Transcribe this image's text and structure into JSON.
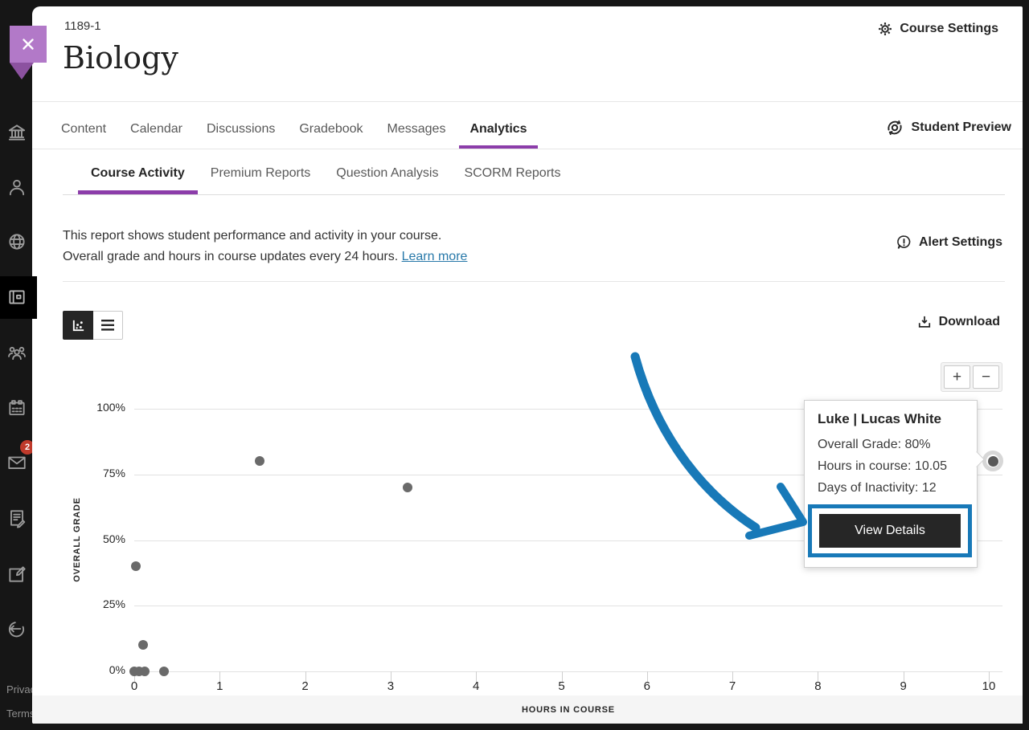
{
  "header": {
    "course_id": "1189-1",
    "course_title": "Biology",
    "course_settings_label": "Course Settings"
  },
  "nav": {
    "tabs": [
      "Content",
      "Calendar",
      "Discussions",
      "Gradebook",
      "Messages",
      "Analytics"
    ],
    "active_tab": "Analytics",
    "student_preview_label": "Student Preview"
  },
  "subnav": {
    "tabs": [
      "Course Activity",
      "Premium Reports",
      "Question Analysis",
      "SCORM Reports"
    ],
    "active_tab": "Course Activity"
  },
  "report": {
    "description_line1": "This report shows student performance and activity in your course.",
    "description_line2": "Overall grade and hours in course updates every 24 hours.",
    "learn_more_label": "Learn more",
    "alert_settings_label": "Alert Settings",
    "download_label": "Download"
  },
  "zoom_controls": {
    "zoom_in": "+",
    "zoom_out": "−"
  },
  "chart_data": {
    "type": "scatter",
    "xlabel": "HOURS IN COURSE",
    "ylabel": "OVERALL GRADE",
    "xlim": [
      0,
      10
    ],
    "ylim": [
      0,
      100
    ],
    "x_ticks": [
      0,
      1,
      2,
      3,
      4,
      5,
      6,
      7,
      8,
      9,
      10
    ],
    "y_ticks": [
      0,
      25,
      50,
      75,
      100
    ],
    "y_tick_labels": [
      "0%",
      "25%",
      "50%",
      "75%",
      "100%"
    ],
    "grid": "horizontal",
    "point_color": "#6a6a6a",
    "points": [
      {
        "x": 0.0,
        "y": 0
      },
      {
        "x": 0.06,
        "y": 0
      },
      {
        "x": 0.12,
        "y": 0
      },
      {
        "x": 0.35,
        "y": 0
      },
      {
        "x": 0.1,
        "y": 10
      },
      {
        "x": 0.02,
        "y": 40
      },
      {
        "x": 1.47,
        "y": 80
      },
      {
        "x": 3.2,
        "y": 70
      },
      {
        "x": 10.05,
        "y": 80,
        "highlighted": true
      }
    ]
  },
  "tooltip": {
    "title": "Luke | Lucas White",
    "rows": [
      "Overall Grade: 80%",
      "Hours in course: 10.05",
      "Days of Inactivity: 12"
    ],
    "button_label": "View Details"
  },
  "sidebar": {
    "icons": [
      "institution-icon",
      "profile-icon",
      "globe-icon",
      "courses-icon",
      "groups-icon",
      "calendar-icon",
      "messages-icon",
      "grades-icon",
      "marks-icon",
      "sign-out-icon"
    ],
    "active_icon": "courses-icon",
    "messages_badge_count": "2",
    "footer_links": [
      "Privacy",
      "Terms"
    ]
  },
  "colors": {
    "accent_purple": "#8c3daa",
    "highlight_blue": "#1879b8",
    "link_blue": "#2778a9",
    "dot_gray": "#6a6a6a"
  }
}
